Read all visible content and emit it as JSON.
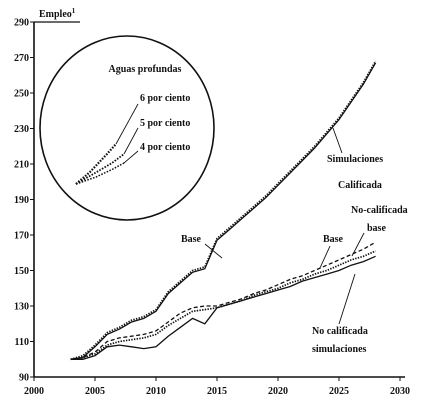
{
  "chart_data": {
    "type": "line",
    "ylabel": "Empleo",
    "ylabel_sup": "1",
    "xlim": [
      2000,
      2030
    ],
    "ylim": [
      90,
      290
    ],
    "xticks": [
      2000,
      2005,
      2010,
      2015,
      2020,
      2025,
      2030
    ],
    "yticks": [
      90,
      110,
      130,
      150,
      170,
      190,
      210,
      230,
      250,
      270,
      290
    ],
    "grid": false,
    "series": [
      {
        "name": "Simulaciones Calificada",
        "style": "dotted",
        "x": [
          2003,
          2004,
          2005,
          2006,
          2007,
          2008,
          2009,
          2010,
          2011,
          2012,
          2013,
          2014,
          2015,
          2016,
          2017,
          2018,
          2019,
          2020,
          2021,
          2022,
          2023,
          2024,
          2025,
          2026,
          2027,
          2028
        ],
        "y": [
          100,
          102,
          108,
          115,
          118,
          122,
          124,
          128,
          138,
          144,
          150,
          152,
          168,
          174,
          180,
          186,
          192,
          199,
          206,
          213,
          220,
          228,
          236,
          246,
          256,
          268
        ]
      },
      {
        "name": "Base",
        "style": "solid",
        "x": [
          2003,
          2004,
          2005,
          2006,
          2007,
          2008,
          2009,
          2010,
          2011,
          2012,
          2013,
          2014,
          2015,
          2016,
          2017,
          2018,
          2019,
          2020,
          2021,
          2022,
          2023,
          2024,
          2025,
          2026,
          2027,
          2028
        ],
        "y": [
          100,
          101,
          107,
          114,
          117,
          121,
          123,
          127,
          137,
          143,
          149,
          151,
          167,
          173,
          179,
          185,
          191,
          198,
          205,
          212,
          219,
          227,
          235,
          245,
          255,
          267
        ]
      },
      {
        "name": "No-calificada base",
        "style": "dashed",
        "x": [
          2003,
          2004,
          2005,
          2006,
          2007,
          2008,
          2009,
          2010,
          2011,
          2012,
          2013,
          2014,
          2015,
          2016,
          2017,
          2018,
          2019,
          2020,
          2021,
          2022,
          2023,
          2024,
          2025,
          2026,
          2027,
          2028
        ],
        "y": [
          100,
          101,
          104,
          110,
          112,
          113,
          114,
          116,
          121,
          126,
          129,
          130,
          130,
          132,
          134,
          137,
          139,
          142,
          145,
          147,
          150,
          153,
          156,
          159,
          162,
          166
        ]
      },
      {
        "name": "Base (dotted)",
        "style": "dotted",
        "x": [
          2003,
          2004,
          2005,
          2006,
          2007,
          2008,
          2009,
          2010,
          2011,
          2012,
          2013,
          2014,
          2015,
          2016,
          2017,
          2018,
          2019,
          2020,
          2021,
          2022,
          2023,
          2024,
          2025,
          2026,
          2027,
          2028
        ],
        "y": [
          100,
          101,
          103,
          108,
          110,
          111,
          112,
          114,
          119,
          123,
          127,
          128,
          129,
          131,
          133,
          136,
          138,
          140,
          143,
          145,
          148,
          150,
          153,
          156,
          158,
          161
        ]
      },
      {
        "name": "No calificada simulaciones",
        "style": "solid",
        "x": [
          2003,
          2004,
          2005,
          2006,
          2007,
          2008,
          2009,
          2010,
          2011,
          2012,
          2013,
          2014,
          2015,
          2016,
          2017,
          2018,
          2019,
          2020,
          2021,
          2022,
          2023,
          2024,
          2025,
          2026,
          2027,
          2028
        ],
        "y": [
          100,
          100,
          102,
          107,
          108,
          107,
          106,
          107,
          113,
          118,
          123,
          120,
          129,
          131,
          133,
          135,
          137,
          139,
          141,
          144,
          146,
          148,
          150,
          153,
          155,
          158
        ]
      }
    ],
    "annotations": {
      "base_upper": "Base",
      "simulaciones": "Simulaciones",
      "calificada": "Calificada",
      "nocal_line1": "No-calificada",
      "nocal_line2": "base",
      "base_lower": "Base",
      "nocal_sim_line1": "No calificada",
      "nocal_sim_line2": "simulaciones"
    },
    "inset": {
      "title": "Aguas profundas",
      "labels": [
        "6 por ciento",
        "5 por ciento",
        "4 por ciento"
      ]
    }
  }
}
